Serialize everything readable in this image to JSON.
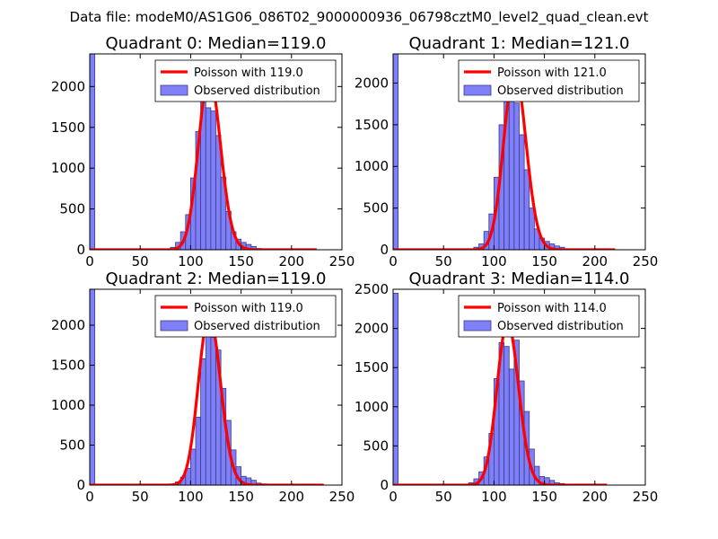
{
  "suptitle": "Data file: modeM0/AS1G06_086T02_9000000936_06798cztM0_level2_quad_clean.evt",
  "colors": {
    "bar_fill": "#7f7ff7",
    "bar_edge": "#3a3a8c",
    "curve": "#ff0000",
    "curve_peak": "#f29a9a",
    "axes": "#000000",
    "background": "#ffffff"
  },
  "chart_data": [
    {
      "type": "bar",
      "title": "Quadrant 0: Median=119.0",
      "median": 119.0,
      "xlim": [
        0,
        250
      ],
      "ylim": [
        0,
        2400
      ],
      "xticks": [
        0,
        50,
        100,
        150,
        200,
        250
      ],
      "yticks": [
        0,
        500,
        1000,
        1500,
        2000
      ],
      "legend": [
        "Poisson with 119.0",
        "Observed distribution"
      ],
      "legend_position": "upper-right",
      "bin_width": 5,
      "bins": [
        {
          "x": 0,
          "y": 2400
        },
        {
          "x": 80,
          "y": 30
        },
        {
          "x": 85,
          "y": 90
        },
        {
          "x": 90,
          "y": 220
        },
        {
          "x": 95,
          "y": 430
        },
        {
          "x": 100,
          "y": 880
        },
        {
          "x": 105,
          "y": 1450
        },
        {
          "x": 110,
          "y": 1900
        },
        {
          "x": 115,
          "y": 1740
        },
        {
          "x": 120,
          "y": 1700
        },
        {
          "x": 125,
          "y": 1400
        },
        {
          "x": 130,
          "y": 890
        },
        {
          "x": 135,
          "y": 470
        },
        {
          "x": 140,
          "y": 220
        },
        {
          "x": 145,
          "y": 130
        },
        {
          "x": 150,
          "y": 90
        },
        {
          "x": 155,
          "y": 65
        },
        {
          "x": 160,
          "y": 40
        },
        {
          "x": 165,
          "y": 15
        }
      ],
      "curve_x_range": [
        0,
        225
      ]
    },
    {
      "type": "bar",
      "title": "Quadrant 1: Median=121.0",
      "median": 121.0,
      "xlim": [
        0,
        250
      ],
      "ylim": [
        0,
        2350
      ],
      "xticks": [
        0,
        50,
        100,
        150,
        200,
        250
      ],
      "yticks": [
        0,
        500,
        1000,
        1500,
        2000
      ],
      "legend": [
        "Poisson with 121.0",
        "Observed distribution"
      ],
      "legend_position": "upper-right",
      "bin_width": 5,
      "bins": [
        {
          "x": 0,
          "y": 2350
        },
        {
          "x": 80,
          "y": 30
        },
        {
          "x": 85,
          "y": 70
        },
        {
          "x": 90,
          "y": 220
        },
        {
          "x": 95,
          "y": 430
        },
        {
          "x": 100,
          "y": 870
        },
        {
          "x": 105,
          "y": 1500
        },
        {
          "x": 110,
          "y": 1920
        },
        {
          "x": 115,
          "y": 1870
        },
        {
          "x": 120,
          "y": 1760
        },
        {
          "x": 125,
          "y": 1380
        },
        {
          "x": 130,
          "y": 960
        },
        {
          "x": 135,
          "y": 500
        },
        {
          "x": 140,
          "y": 250
        },
        {
          "x": 145,
          "y": 140
        },
        {
          "x": 150,
          "y": 100
        },
        {
          "x": 155,
          "y": 70
        },
        {
          "x": 160,
          "y": 45
        },
        {
          "x": 165,
          "y": 30
        },
        {
          "x": 170,
          "y": 10
        }
      ],
      "curve_x_range": [
        0,
        220
      ]
    },
    {
      "type": "bar",
      "title": "Quadrant 2: Median=119.0",
      "median": 119.0,
      "xlim": [
        0,
        250
      ],
      "ylim": [
        0,
        2450
      ],
      "xticks": [
        0,
        50,
        100,
        150,
        200,
        250
      ],
      "yticks": [
        0,
        500,
        1000,
        1500,
        2000
      ],
      "legend": [
        "Poisson with 119.0",
        "Observed distribution"
      ],
      "legend_position": "upper-right",
      "bin_width": 5,
      "bins": [
        {
          "x": 0,
          "y": 2450
        },
        {
          "x": 85,
          "y": 40
        },
        {
          "x": 90,
          "y": 100
        },
        {
          "x": 95,
          "y": 210
        },
        {
          "x": 100,
          "y": 450
        },
        {
          "x": 105,
          "y": 850
        },
        {
          "x": 110,
          "y": 1580
        },
        {
          "x": 115,
          "y": 1900
        },
        {
          "x": 120,
          "y": 1850
        },
        {
          "x": 125,
          "y": 1690
        },
        {
          "x": 130,
          "y": 1210
        },
        {
          "x": 135,
          "y": 810
        },
        {
          "x": 140,
          "y": 440
        },
        {
          "x": 145,
          "y": 230
        },
        {
          "x": 150,
          "y": 110
        },
        {
          "x": 155,
          "y": 90
        },
        {
          "x": 160,
          "y": 60
        },
        {
          "x": 165,
          "y": 25
        },
        {
          "x": 170,
          "y": 15
        }
      ],
      "curve_x_range": [
        0,
        232
      ]
    },
    {
      "type": "bar",
      "title": "Quadrant 3: Median=114.0",
      "median": 114.0,
      "xlim": [
        0,
        250
      ],
      "ylim": [
        0,
        2500
      ],
      "xticks": [
        0,
        50,
        100,
        150,
        200,
        250
      ],
      "yticks": [
        0,
        500,
        1000,
        1500,
        2000,
        2500
      ],
      "legend": [
        "Poisson with 114.0",
        "Observed distribution"
      ],
      "legend_position": "upper-right",
      "bin_width": 5,
      "bins": [
        {
          "x": 0,
          "y": 2450
        },
        {
          "x": 75,
          "y": 30
        },
        {
          "x": 80,
          "y": 80
        },
        {
          "x": 85,
          "y": 170
        },
        {
          "x": 90,
          "y": 360
        },
        {
          "x": 95,
          "y": 660
        },
        {
          "x": 100,
          "y": 1360
        },
        {
          "x": 105,
          "y": 1820
        },
        {
          "x": 110,
          "y": 1770
        },
        {
          "x": 115,
          "y": 1480
        },
        {
          "x": 120,
          "y": 1850
        },
        {
          "x": 125,
          "y": 1330
        },
        {
          "x": 130,
          "y": 940
        },
        {
          "x": 135,
          "y": 460
        },
        {
          "x": 140,
          "y": 240
        },
        {
          "x": 145,
          "y": 110
        },
        {
          "x": 150,
          "y": 95
        },
        {
          "x": 155,
          "y": 60
        },
        {
          "x": 160,
          "y": 30
        },
        {
          "x": 165,
          "y": 20
        }
      ],
      "curve_x_range": [
        0,
        212
      ]
    }
  ]
}
